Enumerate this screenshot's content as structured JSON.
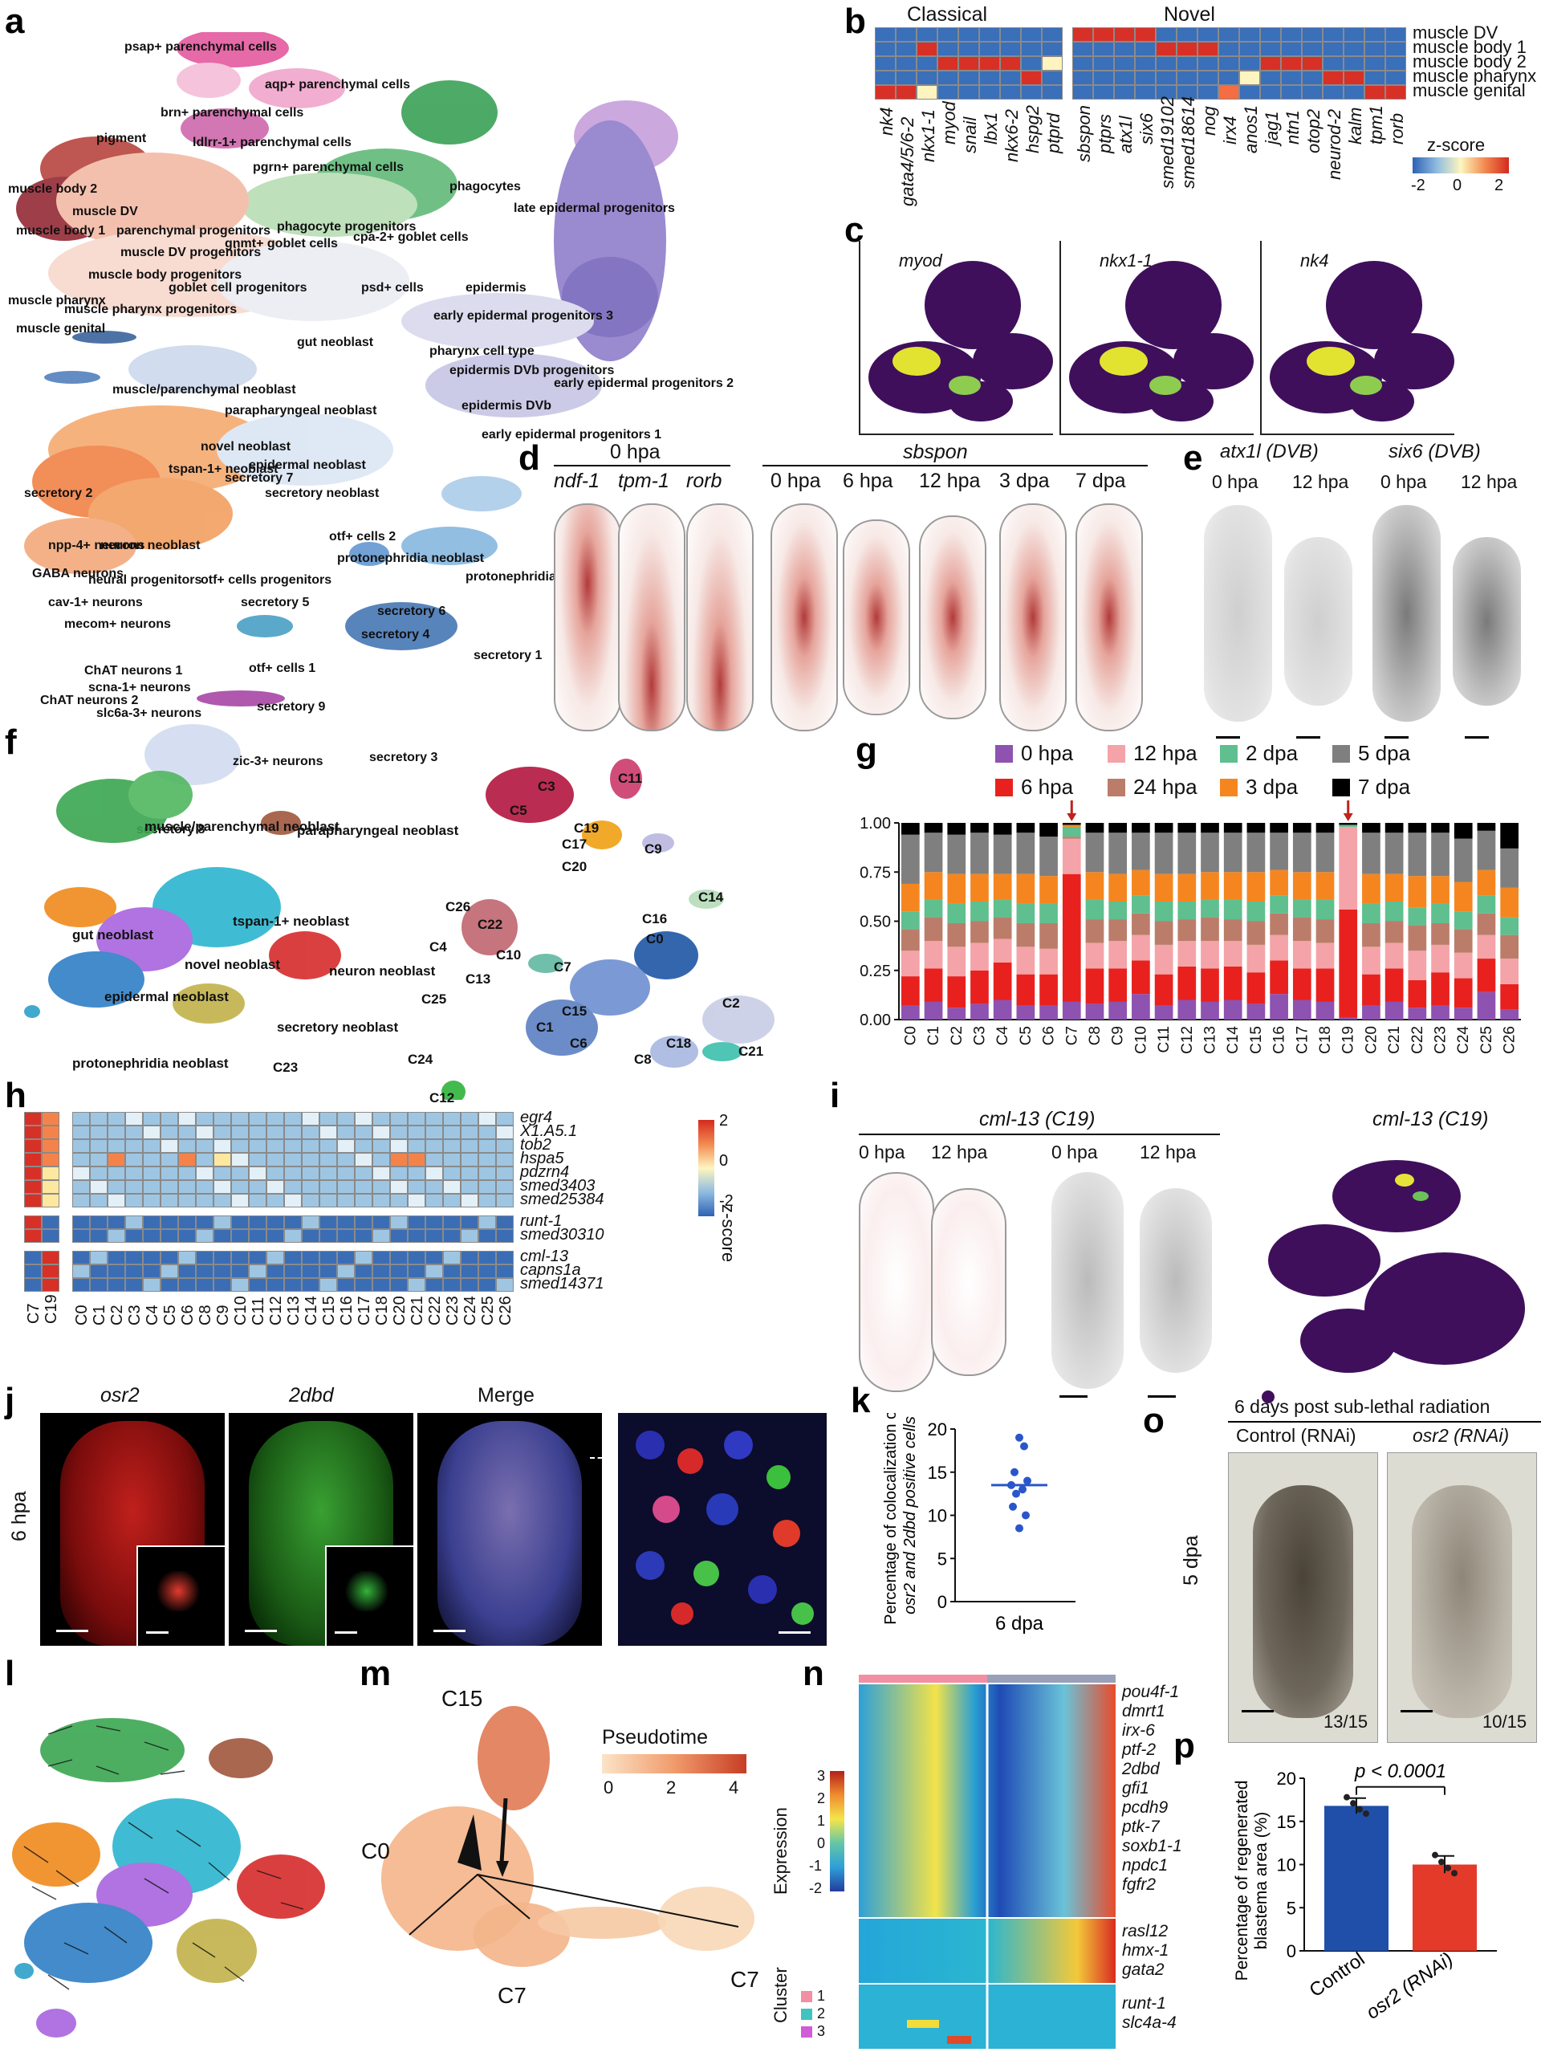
{
  "panels": {
    "a": {
      "letter": "a",
      "clusters": [
        "psap+ parenchymal cells",
        "aqp+ parenchymal cells",
        "brn+ parenchymal cells",
        "pigment",
        "ldlrr-1+ parenchymal cells",
        "pgrn+ parenchymal cells",
        "phagocytes",
        "late epidermal progenitors",
        "muscle body 2",
        "muscle DV",
        "muscle body 1",
        "parenchymal progenitors",
        "phagocyte progenitors",
        "cpa-2+ goblet cells",
        "gnmt+ goblet cells",
        "muscle DV progenitors",
        "muscle body progenitors",
        "epidermis",
        "goblet cell progenitors",
        "psd+ cells",
        "early epidermal progenitors 3",
        "muscle pharynx",
        "muscle pharynx progenitors",
        "muscle genital",
        "gut neoblast",
        "pharynx cell type",
        "epidermis DVb progenitors",
        "early epidermal progenitors 2",
        "muscle/parenchymal neoblast",
        "parapharyngeal neoblast",
        "epidermis DVb",
        "secretory 7",
        "novel neoblast",
        "early epidermal progenitors 1",
        "secretory 2",
        "tspan-1+ neoblast",
        "epidermal neoblast",
        "secretory neoblast",
        "npp-4+ neurons",
        "neuron neoblast",
        "otf+ cells 2",
        "protonephridia neoblast",
        "GABA neurons",
        "neural progenitors",
        "otf+ cells progenitors",
        "protonephridia",
        "cav-1+ neurons",
        "secretory 5",
        "mecom+ neurons",
        "secretory 6",
        "secretory 4",
        "secretory 1",
        "ChAT neurons 1",
        "otf+ cells 1",
        "ChAT neurons 2",
        "scna-1+ neurons",
        "secretory 9",
        "slc6a-3+ neurons",
        "secretory 3",
        "zic-3+ neurons",
        "secretory 8"
      ]
    },
    "b": {
      "letter": "b",
      "group_classical": "Classical",
      "group_novel": "Novel",
      "rows": [
        "muscle DV",
        "muscle body 1",
        "muscle body 2",
        "muscle pharynx",
        "muscle genital"
      ],
      "genes_classical": [
        "nk4",
        "gata4/5/6-2",
        "nkx1-1",
        "myod",
        "snail",
        "lbx1",
        "nkx6-2",
        "hspg2",
        "ptprd"
      ],
      "genes_novel": [
        "sbspon",
        "ptprs",
        "atx1l",
        "six6",
        "smed19102",
        "smed18614",
        "nog",
        "irx4",
        "anos1",
        "jag1",
        "ntn1",
        "otop2",
        "neurod-2",
        "kalm",
        "tpm1",
        "rorb"
      ],
      "scale_title": "z-score",
      "scale_ticks": [
        "-2",
        "0",
        "2"
      ]
    },
    "c": {
      "letter": "c",
      "genes": [
        "myod",
        "nkx1-1",
        "nk4"
      ]
    },
    "d": {
      "letter": "d",
      "left_title": "0 hpa",
      "left_genes": [
        "ndf-1",
        "tpm-1",
        "rorb"
      ],
      "right_title": "sbspon",
      "right_times": [
        "0 hpa",
        "6 hpa",
        "12 hpa",
        "3 dpa",
        "7 dpa"
      ]
    },
    "e": {
      "letter": "e",
      "titles": [
        "atx1l (DVB)",
        "six6 (DVB)"
      ],
      "times": [
        "0 hpa",
        "12 hpa",
        "0 hpa",
        "12 hpa"
      ]
    },
    "f": {
      "letter": "f",
      "left_labels": [
        "muscle/parenchymal neoblast",
        "parapharyngeal neoblast",
        "gut neoblast",
        "tspan-1+ neoblast",
        "novel neoblast",
        "neuron neoblast",
        "epidermal neoblast",
        "secretory neoblast",
        "protonephridia neoblast"
      ],
      "right_labels": [
        "C3",
        "C11",
        "C5",
        "C19",
        "C17",
        "C9",
        "C20",
        "C14",
        "C26",
        "C22",
        "C16",
        "C4",
        "C13",
        "C10",
        "C7",
        "C0",
        "C25",
        "C2",
        "C15",
        "C1",
        "C6",
        "C21",
        "C23",
        "C24",
        "C18",
        "C8",
        "C12"
      ]
    },
    "g": {
      "letter": "g"
    },
    "h": {
      "letter": "h",
      "scale_title": "z-score",
      "scale_ticks": [
        "2",
        "0",
        "-2"
      ],
      "genes": [
        "egr4",
        "X1.A5.1",
        "tob2",
        "hspa5",
        "pdzrn4",
        "smed3403",
        "smed25384",
        "runt-1",
        "smed30310",
        "cml-13",
        "capns1a",
        "smed14371"
      ],
      "left_cols": [
        "C7",
        "C19"
      ],
      "right_cols": [
        "C0",
        "C1",
        "C2",
        "C3",
        "C4",
        "C5",
        "C6",
        "C8",
        "C9",
        "C10",
        "C11",
        "C12",
        "C13",
        "C14",
        "C15",
        "C16",
        "C17",
        "C18",
        "C20",
        "C21",
        "C22",
        "C23",
        "C24",
        "C25",
        "C26"
      ]
    },
    "i": {
      "letter": "i",
      "title1": "cml-13 (C19)",
      "title2": "cml-13 (C19)",
      "times": [
        "0 hpa",
        "12 hpa",
        "0 hpa",
        "12 hpa"
      ]
    },
    "j": {
      "letter": "j",
      "titles": [
        "osr2",
        "2dbd",
        "Merge"
      ],
      "time": "6 hpa"
    },
    "k": {
      "letter": "k",
      "ylabel_line1": "Percentage of colocalization of",
      "ylabel_line2": "osr2 and 2dbd positive cells",
      "yticks": [
        "0",
        "5",
        "10",
        "15",
        "20"
      ],
      "xlabel": "6 dpa"
    },
    "l": {
      "letter": "l"
    },
    "m": {
      "letter": "m",
      "legend_title": "Pseudotime",
      "ticks": [
        "0",
        "2",
        "4"
      ],
      "labels": [
        "C15",
        "C0",
        "C7",
        "C7"
      ]
    },
    "n": {
      "letter": "n",
      "genes": [
        "pou4f-1",
        "dmrt1",
        "irx-6",
        "ptf-2",
        "2dbd",
        "gfi1",
        "pcdh9",
        "ptk-7",
        "soxb1-1",
        "npdc1",
        "fgfr2",
        "rasl12",
        "hmx-1",
        "gata2",
        "runt-1",
        "slc4a-4"
      ],
      "scale_title": "Expression",
      "scale_ticks": [
        "3",
        "2",
        "1",
        "0",
        "-1",
        "-2"
      ],
      "cluster_title": "Cluster",
      "cluster_ids": [
        "1",
        "2",
        "3"
      ]
    },
    "o": {
      "letter": "o",
      "title": "6 days post sub-lethal radiation",
      "col1": "Control (RNAi)",
      "col2": "osr2 (RNAi)",
      "row": "5 dpa",
      "count1": "13/15",
      "count2": "10/15"
    },
    "p": {
      "letter": "p",
      "pvalue": "p < 0.0001",
      "ylabel_line1": "Percentage of regenerated",
      "ylabel_line2": "blastema area (%)",
      "yticks": [
        "0",
        "5",
        "10",
        "15",
        "20"
      ],
      "categories": [
        "Control",
        "osr2 (RNAi)"
      ]
    }
  },
  "chart_data": [
    {
      "panel": "g",
      "type": "bar",
      "stacked": true,
      "normalized": true,
      "categories": [
        "C0",
        "C1",
        "C2",
        "C3",
        "C4",
        "C5",
        "C6",
        "C7",
        "C8",
        "C9",
        "C10",
        "C11",
        "C12",
        "C13",
        "C14",
        "C15",
        "C16",
        "C17",
        "C18",
        "C19",
        "C20",
        "C21",
        "C22",
        "C23",
        "C24",
        "C25",
        "C26"
      ],
      "series": [
        {
          "name": "0 hpa",
          "color": "#8e52b0",
          "values": [
            0.07,
            0.09,
            0.06,
            0.08,
            0.1,
            0.07,
            0.07,
            0.09,
            0.08,
            0.09,
            0.13,
            0.07,
            0.1,
            0.09,
            0.1,
            0.08,
            0.13,
            0.1,
            0.09,
            0.01,
            0.07,
            0.09,
            0.06,
            0.07,
            0.06,
            0.14,
            0.05
          ]
        },
        {
          "name": "6 hpa",
          "color": "#e8211e",
          "values": [
            0.15,
            0.17,
            0.16,
            0.17,
            0.19,
            0.16,
            0.16,
            0.65,
            0.18,
            0.17,
            0.17,
            0.16,
            0.17,
            0.17,
            0.17,
            0.16,
            0.17,
            0.16,
            0.17,
            0.55,
            0.16,
            0.17,
            0.14,
            0.17,
            0.15,
            0.17,
            0.13
          ]
        },
        {
          "name": "12 hpa",
          "color": "#f4a3a8",
          "values": [
            0.13,
            0.14,
            0.15,
            0.14,
            0.12,
            0.14,
            0.13,
            0.18,
            0.13,
            0.14,
            0.13,
            0.15,
            0.13,
            0.14,
            0.13,
            0.14,
            0.13,
            0.14,
            0.13,
            0.42,
            0.14,
            0.13,
            0.15,
            0.14,
            0.13,
            0.12,
            0.13
          ]
        },
        {
          "name": "24 hpa",
          "color": "#bb7d6a",
          "values": [
            0.11,
            0.12,
            0.12,
            0.11,
            0.11,
            0.12,
            0.13,
            0.01,
            0.12,
            0.11,
            0.11,
            0.12,
            0.11,
            0.12,
            0.11,
            0.12,
            0.11,
            0.12,
            0.12,
            0.0,
            0.12,
            0.11,
            0.13,
            0.11,
            0.12,
            0.11,
            0.12
          ]
        },
        {
          "name": "2 dpa",
          "color": "#5fbf8f",
          "values": [
            0.09,
            0.09,
            0.1,
            0.1,
            0.09,
            0.1,
            0.1,
            0.05,
            0.1,
            0.09,
            0.09,
            0.1,
            0.09,
            0.09,
            0.1,
            0.1,
            0.09,
            0.09,
            0.1,
            0.01,
            0.1,
            0.1,
            0.09,
            0.1,
            0.09,
            0.09,
            0.09
          ]
        },
        {
          "name": "3 dpa",
          "color": "#f5861f",
          "values": [
            0.14,
            0.14,
            0.15,
            0.14,
            0.13,
            0.15,
            0.14,
            0.01,
            0.14,
            0.14,
            0.13,
            0.14,
            0.14,
            0.14,
            0.14,
            0.15,
            0.13,
            0.14,
            0.14,
            0.0,
            0.15,
            0.14,
            0.16,
            0.14,
            0.15,
            0.13,
            0.15
          ]
        },
        {
          "name": "5 dpa",
          "color": "#7f7f7f",
          "values": [
            0.25,
            0.2,
            0.2,
            0.21,
            0.2,
            0.21,
            0.2,
            0.0,
            0.2,
            0.21,
            0.19,
            0.21,
            0.21,
            0.2,
            0.2,
            0.2,
            0.19,
            0.2,
            0.2,
            0.0,
            0.21,
            0.21,
            0.22,
            0.22,
            0.22,
            0.2,
            0.2
          ]
        },
        {
          "name": "7 dpa",
          "color": "#000000",
          "values": [
            0.06,
            0.05,
            0.06,
            0.05,
            0.06,
            0.05,
            0.07,
            0.01,
            0.05,
            0.05,
            0.05,
            0.05,
            0.05,
            0.05,
            0.05,
            0.05,
            0.05,
            0.05,
            0.05,
            0.01,
            0.05,
            0.05,
            0.05,
            0.05,
            0.08,
            0.04,
            0.13
          ]
        }
      ],
      "ylim": [
        0,
        1
      ],
      "yticks": [
        "0.00",
        "0.25",
        "0.50",
        "0.75",
        "1.00"
      ],
      "legend": "top",
      "arrows_at": [
        "C7",
        "C19"
      ]
    },
    {
      "panel": "k",
      "type": "scatter",
      "x": "6 dpa",
      "values": [
        19,
        18,
        15,
        14,
        13.5,
        13,
        12.5,
        11,
        10,
        8.5
      ],
      "mean": 13.5,
      "ylim": [
        0,
        20
      ]
    },
    {
      "panel": "p",
      "type": "bar",
      "categories": [
        "Control",
        "osr2 (RNAi)"
      ],
      "values": [
        16.8,
        10.0
      ],
      "errors": [
        0.9,
        1.0
      ],
      "points": [
        [
          17.8,
          17.1,
          16.4,
          15.9
        ],
        [
          11.1,
          10.3,
          9.6,
          9.0
        ]
      ],
      "colors": [
        "#1f4fa8",
        "#e33a2a"
      ],
      "ylim": [
        0,
        20
      ],
      "annotation": "p < 0.0001"
    }
  ]
}
